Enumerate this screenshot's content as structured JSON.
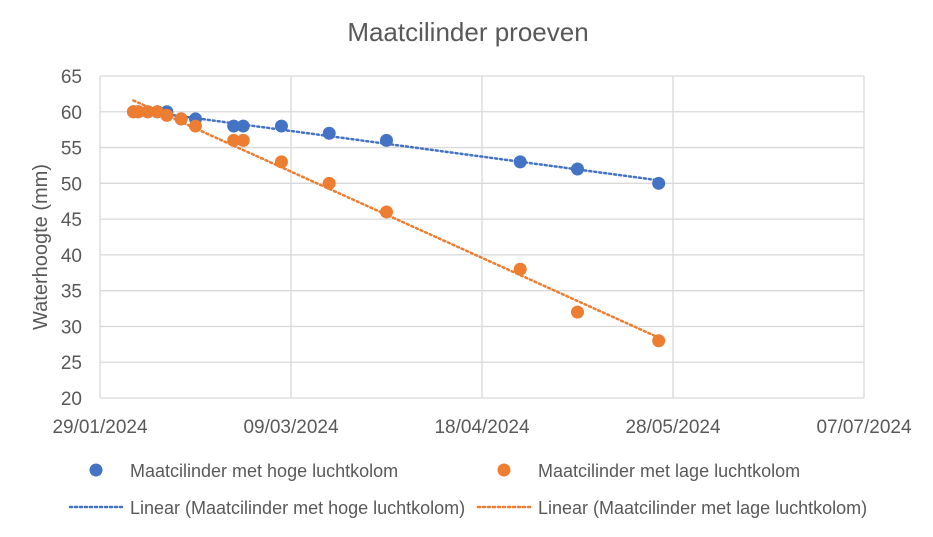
{
  "chart_data": {
    "type": "scatter",
    "title": "Maatcilinder proeven",
    "xlabel": "",
    "ylabel": "Waterhoogte (mm)",
    "xlim": [
      "2024-01-29",
      "2024-07-07"
    ],
    "x_ticks": [
      "29/01/2024",
      "09/03/2024",
      "18/04/2024",
      "28/05/2024",
      "07/07/2024"
    ],
    "ylim": [
      20,
      65
    ],
    "y_ticks": [
      20,
      25,
      30,
      35,
      40,
      45,
      50,
      55,
      60,
      65
    ],
    "grid": true,
    "legend_position": "bottom",
    "series": [
      {
        "name": "Maatcilinder met hoge luchtkolom",
        "color": "#4472C4",
        "x": [
          "2024-02-05",
          "2024-02-06",
          "2024-02-08",
          "2024-02-10",
          "2024-02-12",
          "2024-02-15",
          "2024-02-18",
          "2024-02-26",
          "2024-02-28",
          "2024-03-07",
          "2024-03-17",
          "2024-03-29",
          "2024-04-26",
          "2024-05-08",
          "2024-05-25"
        ],
        "y": [
          60,
          60,
          60,
          60,
          60,
          59,
          59,
          58,
          58,
          58,
          57,
          56,
          53,
          52,
          50
        ]
      },
      {
        "name": "Maatcilinder met lage luchtkolom",
        "color": "#ED7D31",
        "x": [
          "2024-02-05",
          "2024-02-06",
          "2024-02-08",
          "2024-02-10",
          "2024-02-12",
          "2024-02-15",
          "2024-02-18",
          "2024-02-26",
          "2024-02-28",
          "2024-03-07",
          "2024-03-17",
          "2024-03-29",
          "2024-04-26",
          "2024-05-08",
          "2024-05-25"
        ],
        "y": [
          60,
          60,
          60,
          60,
          59.5,
          59,
          58,
          56,
          56,
          53,
          50,
          46,
          38,
          32,
          28
        ]
      }
    ],
    "trendlines": [
      {
        "name": "Linear (Maatcilinder met hoge luchtkolom)",
        "series_index": 0,
        "color": "#4472C4"
      },
      {
        "name": "Linear (Maatcilinder met lage luchtkolom)",
        "series_index": 1,
        "color": "#ED7D31"
      }
    ]
  }
}
